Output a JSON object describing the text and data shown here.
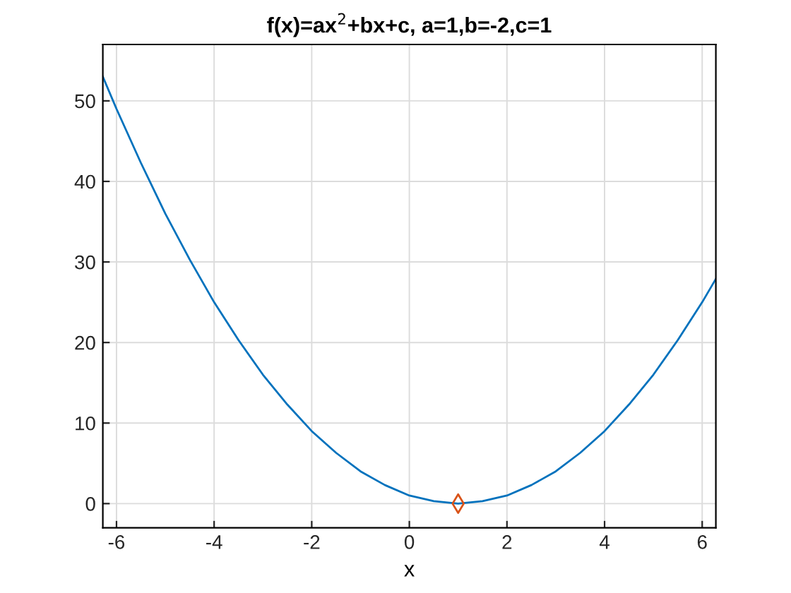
{
  "chart_data": {
    "type": "line",
    "title": "f(x)=ax$^{2}$+bx+c, a=1,b=-2,c=1",
    "xlabel": "x",
    "series": [
      {
        "color": "#0072bd",
        "marker": "none",
        "x": [
          -6.28,
          -6,
          -5.5,
          -5,
          -4.5,
          -4,
          -3.5,
          -3,
          -2.5,
          -2,
          -1.5,
          -1,
          -0.5,
          0,
          0.5,
          1,
          1.5,
          2,
          2.5,
          3,
          3.5,
          4,
          4.5,
          5,
          5.5,
          6,
          6.28
        ],
        "values": [
          53,
          49,
          42.3,
          36,
          30.3,
          25,
          20.3,
          16,
          12.3,
          9,
          6.3,
          4,
          2.3,
          1,
          0.3,
          0,
          0.3,
          1,
          2.3,
          4,
          6.3,
          9,
          12.3,
          16,
          20.3,
          25,
          27.9
        ]
      },
      {
        "type": "scatter",
        "color": "#d95319",
        "marker": "diamond",
        "x": [
          1
        ],
        "values": [
          0
        ]
      }
    ],
    "xlim": [
      -6.28,
      6.28
    ],
    "ylim": [
      -3,
      57
    ],
    "xticks": [
      -6,
      -4,
      -2,
      0,
      2,
      4,
      6
    ],
    "yticks": [
      0,
      10,
      20,
      30,
      40,
      50
    ],
    "grid": true
  }
}
